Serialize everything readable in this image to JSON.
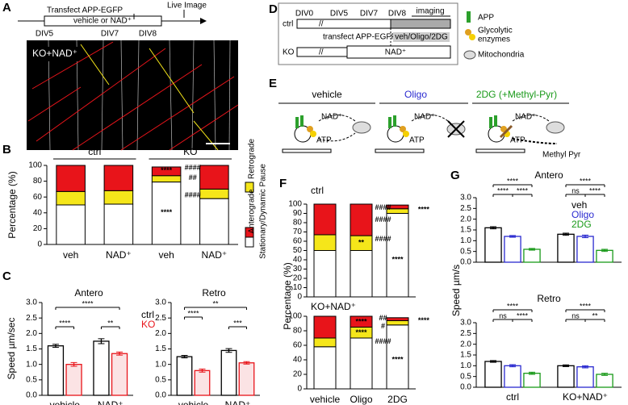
{
  "panel_a": {
    "label": "A",
    "transfect": "Transfect APP-EGFP",
    "live": "Live Image",
    "treatment": "vehicle or NAD⁺",
    "days": [
      "DIV5",
      "DIV7",
      "DIV8"
    ],
    "image_label": "KO+NAD⁺"
  },
  "panel_d": {
    "label": "D",
    "rows": [
      "ctrl",
      "KO"
    ],
    "days": [
      "DIV0",
      "DIV5",
      "DIV7",
      "DIV8"
    ],
    "imaging": "imaging",
    "transfect": "transfect APP-EGFP",
    "treatment": "veh/Oligo/2DG",
    "nad": "NAD⁺",
    "legend": [
      [
        "APP"
      ],
      [
        "Glycolytic",
        "enzymes"
      ],
      [
        "Mitochondria"
      ]
    ]
  },
  "panel_e": {
    "label": "E",
    "conditions": [
      "vehicle",
      "Oligo",
      "2DG (+Methyl-Pyr)"
    ],
    "nad": "NAD⁺",
    "atp": "ATP",
    "methyl": "Methyl Pyr"
  },
  "chart_data": [
    {
      "type": "stacked_bar",
      "label": "B",
      "ylabel": "Percentage (%)",
      "groups": [
        "ctrl",
        "KO"
      ],
      "categories": [
        "veh",
        "NAD⁺",
        "veh",
        "NAD⁺"
      ],
      "ylim": [
        0,
        100
      ],
      "yticks": [
        0,
        20,
        40,
        60,
        80,
        100
      ],
      "legend": true,
      "series": [
        {
          "name": "Stationary/Dynamic Pause",
          "color": "#ffffff",
          "values": [
            50,
            51,
            79,
            58
          ]
        },
        {
          "name": "Retrograde",
          "color": "#f5e61a",
          "values": [
            17,
            17,
            8,
            12
          ]
        },
        {
          "name": "Anterograde",
          "color": "#e8141a",
          "values": [
            33,
            32,
            11,
            30
          ]
        }
      ],
      "annotations": [
        "****",
        "****",
        "####",
        "##",
        "####"
      ]
    },
    {
      "type": "grouped_bar",
      "label": "C",
      "title": "Antero",
      "ylabel": "Speed µm/sec",
      "categories": [
        "vehicle",
        "NAD⁺"
      ],
      "ylim": [
        0,
        3
      ],
      "yticks": [
        {
          "value": 0,
          "label": "0.0"
        },
        {
          "value": 0.5,
          "label": "0.5"
        },
        {
          "value": 1,
          "label": "1.0"
        },
        {
          "value": 1.5,
          "label": "1.5"
        },
        {
          "value": 2,
          "label": "2.0"
        },
        {
          "value": 2.5,
          "label": "2.5"
        },
        {
          "value": 3,
          "label": "3.0"
        }
      ],
      "legend": true,
      "series": [
        {
          "name": "ctrl",
          "color": "#000000",
          "fill": "#ffffff",
          "values": [
            1.6,
            1.75
          ],
          "errors": [
            0.05,
            0.08
          ]
        },
        {
          "name": "KO",
          "color": "#e8141a",
          "fill": "#fbe3e4",
          "values": [
            1.0,
            1.35
          ],
          "errors": [
            0.06,
            0.05
          ]
        }
      ],
      "annotations": [
        "****",
        "****",
        "**"
      ]
    },
    {
      "type": "grouped_bar",
      "title": "Retro",
      "categories": [
        "vehicle",
        "NAD⁺"
      ],
      "ylim": [
        0,
        3
      ],
      "yticks": [
        {
          "value": 0,
          "label": "0.0"
        },
        {
          "value": 0.5,
          "label": "0.5"
        },
        {
          "value": 1,
          "label": "1.0"
        },
        {
          "value": 1.5,
          "label": "1.5"
        },
        {
          "value": 2,
          "label": "2.0"
        },
        {
          "value": 2.5,
          "label": "2.5"
        },
        {
          "value": 3,
          "label": "3.0"
        }
      ],
      "legend": false,
      "series": [
        {
          "name": "ctrl",
          "color": "#000000",
          "fill": "#ffffff",
          "values": [
            1.25,
            1.45
          ],
          "errors": [
            0.04,
            0.06
          ]
        },
        {
          "name": "KO",
          "color": "#e8141a",
          "fill": "#fbe3e4",
          "values": [
            0.8,
            1.05
          ],
          "errors": [
            0.05,
            0.04
          ]
        }
      ],
      "annotations": [
        "****",
        "**",
        "***"
      ]
    },
    {
      "type": "stacked_bar",
      "label": "F",
      "title": "ctrl",
      "ylabel": "Percentage (%)",
      "ylim": [
        0,
        100
      ],
      "yticks": [
        0,
        10,
        20,
        30,
        40,
        50,
        60,
        70,
        80,
        90,
        100
      ],
      "legend": false,
      "series": [
        {
          "name": "Stationary/Dynamic Pause",
          "color": "#ffffff",
          "values": [
            50,
            50,
            90
          ]
        },
        {
          "name": "Retrograde",
          "color": "#f5e61a",
          "values": [
            17,
            16,
            5
          ]
        },
        {
          "name": "Anterograde",
          "color": "#e8141a",
          "values": [
            33,
            34,
            4
          ]
        }
      ],
      "annotations": [
        "**",
        "####",
        "####",
        "####",
        "****",
        "****"
      ]
    },
    {
      "type": "stacked_bar",
      "title": "KO+NAD⁺",
      "categories": [
        "vehicle",
        "Oligo",
        "2DG"
      ],
      "ylim": [
        0,
        100
      ],
      "yticks": [
        0,
        20,
        40,
        60,
        80,
        100
      ],
      "legend": false,
      "series": [
        {
          "name": "Stationary/Dynamic Pause",
          "color": "#ffffff",
          "values": [
            58,
            70,
            88
          ]
        },
        {
          "name": "Retrograde",
          "color": "#f5e61a",
          "values": [
            12,
            15,
            6
          ]
        },
        {
          "name": "Anterograde",
          "color": "#e8141a",
          "values": [
            30,
            15,
            4
          ]
        }
      ],
      "annotations": [
        "****",
        "****",
        "##",
        "#",
        "####",
        "****",
        "****"
      ]
    },
    {
      "type": "grouped_bar",
      "label": "G",
      "title": "Antero",
      "ylabel": "Speed µm/s",
      "ylim": [
        0,
        3
      ],
      "yticks": [
        {
          "value": 0,
          "label": "0.0"
        },
        {
          "value": 0.5,
          "label": "0.5"
        },
        {
          "value": 1,
          "label": "1.0"
        },
        {
          "value": 1.5,
          "label": "1.5"
        },
        {
          "value": 2,
          "label": "2.0"
        },
        {
          "value": 2.5,
          "label": "2.5"
        },
        {
          "value": 3,
          "label": "3.0"
        }
      ],
      "legend": true,
      "series": [
        {
          "name": "veh",
          "color": "#000000",
          "fill": "#ffffff",
          "values": [
            1.6,
            1.3
          ],
          "errors": [
            0.05,
            0.05
          ]
        },
        {
          "name": "Oligo",
          "color": "#2a2ad0",
          "fill": "#ffffff",
          "values": [
            1.2,
            1.2
          ],
          "errors": [
            0.04,
            0.06
          ]
        },
        {
          "name": "2DG",
          "color": "#1a9a1a",
          "fill": "#ffffff",
          "values": [
            0.6,
            0.55
          ],
          "errors": [
            0.04,
            0.05
          ]
        }
      ],
      "annotations": [
        "****",
        "****",
        "****",
        "ns",
        "****",
        "****"
      ]
    },
    {
      "type": "grouped_bar",
      "title": "Retro",
      "categories": [
        "ctrl",
        "KO+NAD⁺"
      ],
      "ylim": [
        0,
        3
      ],
      "yticks": [
        {
          "value": 0,
          "label": "0.0"
        },
        {
          "value": 0.5,
          "label": "0.5"
        },
        {
          "value": 1,
          "label": "1.0"
        },
        {
          "value": 1.5,
          "label": "1.5"
        },
        {
          "value": 2,
          "label": "2.0"
        },
        {
          "value": 2.5,
          "label": "2.5"
        },
        {
          "value": 3,
          "label": "3.0"
        }
      ],
      "legend": false,
      "series": [
        {
          "name": "veh",
          "color": "#000000",
          "fill": "#ffffff",
          "values": [
            1.2,
            1.0
          ],
          "errors": [
            0.04,
            0.04
          ]
        },
        {
          "name": "Oligo",
          "color": "#2a2ad0",
          "fill": "#ffffff",
          "values": [
            1.0,
            0.95
          ],
          "errors": [
            0.05,
            0.05
          ]
        },
        {
          "name": "2DG",
          "color": "#1a9a1a",
          "fill": "#ffffff",
          "values": [
            0.65,
            0.6
          ],
          "errors": [
            0.05,
            0.05
          ]
        }
      ],
      "annotations": [
        "****",
        "ns",
        "****",
        "****",
        "ns",
        "**"
      ]
    }
  ]
}
